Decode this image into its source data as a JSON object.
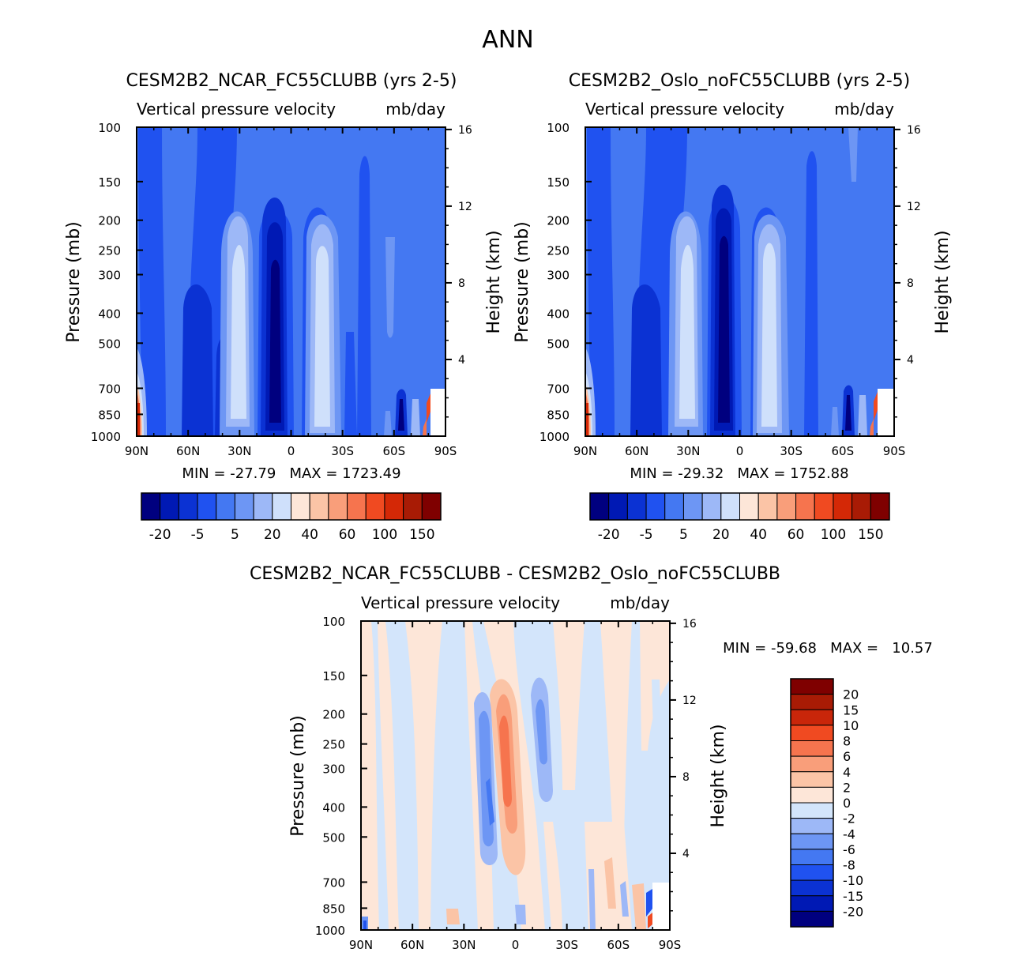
{
  "figure_title": "ANN",
  "palette": {
    "full": [
      "#00007f",
      "#0019b4",
      "#0b32d3",
      "#2052f0",
      "#4478f2",
      "#6d96f4",
      "#9db8f7",
      "#cfe0fb",
      "#fde6d8",
      "#fbc4a6",
      "#f99e7a",
      "#f6744e",
      "#f04a21",
      "#d42806",
      "#a81b05",
      "#7f0000"
    ],
    "diff": [
      "#00007f",
      "#0019b4",
      "#0b32d3",
      "#2052f0",
      "#4478f2",
      "#6d96f4",
      "#9db8f7",
      "#d3e5fb",
      "#fde6d8",
      "#fbc4a6",
      "#f99e7a",
      "#f6744e",
      "#f04a21",
      "#c9260a",
      "#7f0000"
    ]
  },
  "chart_data": [
    {
      "type": "heatmap",
      "title": "CESM2B2_NCAR_FC55CLUBB (yrs 2-5)",
      "subtitle_left": "Vertical pressure velocity",
      "subtitle_right": "mb/day",
      "xlabel": "",
      "ylabel": "Pressure (mb)",
      "ylabel_right": "Height (km)",
      "xlim": [
        90,
        -90
      ],
      "ylim": [
        1000,
        100
      ],
      "x_ticks": [
        "90N",
        "60N",
        "30N",
        "0",
        "30S",
        "60S",
        "90S"
      ],
      "y_ticks": [
        100,
        150,
        200,
        250,
        300,
        400,
        500,
        700,
        850,
        1000
      ],
      "height_ticks": [
        16,
        12,
        8,
        4
      ],
      "stats": "MIN = -27.79   MAX = 1723.49",
      "colorbar_labels": [
        "-20",
        "-5",
        "5",
        "20",
        "40",
        "60",
        "100",
        "150"
      ],
      "min": -27.79,
      "max": 1723.49
    },
    {
      "type": "heatmap",
      "title": "CESM2B2_Oslo_noFC55CLUBB (yrs 2-5)",
      "subtitle_left": "Vertical pressure velocity",
      "subtitle_right": "mb/day",
      "xlabel": "",
      "ylabel": "Pressure (mb)",
      "ylabel_right": "Height (km)",
      "xlim": [
        90,
        -90
      ],
      "ylim": [
        1000,
        100
      ],
      "x_ticks": [
        "90N",
        "60N",
        "30N",
        "0",
        "30S",
        "60S",
        "90S"
      ],
      "y_ticks": [
        100,
        150,
        200,
        250,
        300,
        400,
        500,
        700,
        850,
        1000
      ],
      "height_ticks": [
        16,
        12,
        8,
        4
      ],
      "stats": "MIN = -29.32   MAX = 1752.88",
      "colorbar_labels": [
        "-20",
        "-5",
        "5",
        "20",
        "40",
        "60",
        "100",
        "150"
      ],
      "min": -29.32,
      "max": 1752.88
    },
    {
      "type": "heatmap",
      "title": "CESM2B2_NCAR_FC55CLUBB - CESM2B2_Oslo_noFC55CLUBB",
      "subtitle_left": "Vertical pressure velocity",
      "subtitle_right": "mb/day",
      "xlabel": "",
      "ylabel": "Pressure (mb)",
      "ylabel_right": "Height (km)",
      "xlim": [
        90,
        -90
      ],
      "ylim": [
        1000,
        100
      ],
      "x_ticks": [
        "90N",
        "60N",
        "30N",
        "0",
        "30S",
        "60S",
        "90S"
      ],
      "y_ticks": [
        100,
        150,
        200,
        250,
        300,
        400,
        500,
        700,
        850,
        1000
      ],
      "height_ticks": [
        16,
        12,
        8,
        4
      ],
      "stats": "MIN = -59.68   MAX =   10.57",
      "colorbar_labels": [
        "20",
        "15",
        "10",
        "8",
        "6",
        "4",
        "2",
        "0",
        "-2",
        "-4",
        "-6",
        "-8",
        "-10",
        "-15",
        "-20"
      ],
      "min": -59.68,
      "max": 10.57
    }
  ]
}
